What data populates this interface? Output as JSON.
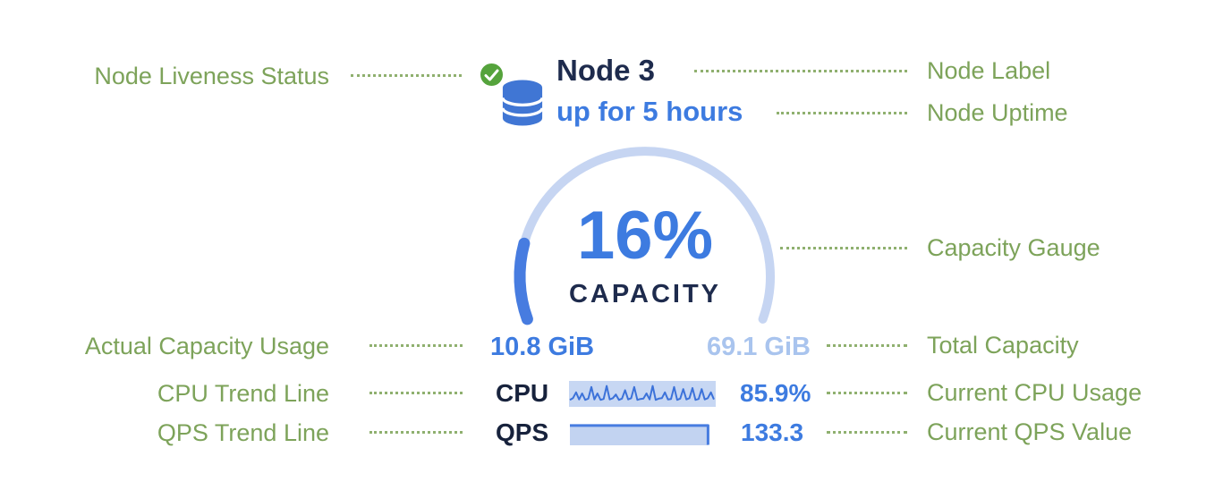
{
  "colors": {
    "annotation_green": "#7DA35A",
    "leader_dot_green": "#8FB06F",
    "navy": "#1E2B4D",
    "blue": "#3D7BE0",
    "light_blue_total": "#A9C4EE",
    "arc_track": "#C6D5F2",
    "arc_value": "#477CE0",
    "sparkline_bg": "#C7D7F3",
    "sparkline_line": "#3C72D9",
    "qps_fill": "#C2D3F1",
    "qps_line": "#477CE0",
    "db_icon_blue": "#4076D4",
    "liveness_green": "#55A33C"
  },
  "node": {
    "label": "Node 3",
    "uptime": "up for 5 hours",
    "capacity_percent": "16%",
    "capacity_caption": "CAPACITY",
    "used_capacity": "10.8 GiB",
    "total_capacity": "69.1 GiB",
    "cpu_label": "CPU",
    "cpu_value": "85.9%",
    "qps_label": "QPS",
    "qps_value": "133.3"
  },
  "annotations": {
    "left": [
      {
        "label": "Node Liveness Status"
      },
      {
        "label": "Actual Capacity Usage"
      },
      {
        "label": "CPU Trend Line"
      },
      {
        "label": "QPS Trend Line"
      }
    ],
    "right": [
      {
        "label": "Node Label"
      },
      {
        "label": "Node Uptime"
      },
      {
        "label": "Capacity Gauge"
      },
      {
        "label": "Total Capacity"
      },
      {
        "label": "Current CPU Usage"
      },
      {
        "label": "Current QPS Value"
      }
    ]
  },
  "chart_data": [
    {
      "type": "gauge",
      "title": "CAPACITY",
      "value_percent": 16,
      "used": "10.8 GiB",
      "total": "69.1 GiB",
      "arc_sweep_degrees": 220,
      "arc_start_degrees": 160
    },
    {
      "type": "line",
      "name": "CPU sparkline",
      "current_value": 85.9,
      "unit": "%",
      "y_normalized": [
        0.8,
        0.72,
        0.45,
        0.78,
        0.5,
        0.8,
        0.74,
        0.2,
        0.78,
        0.5,
        0.8,
        0.76,
        0.15,
        0.78,
        0.72,
        0.55,
        0.8,
        0.74,
        0.35,
        0.78,
        0.72,
        0.2,
        0.8,
        0.76,
        0.74,
        0.5,
        0.78,
        0.15,
        0.8,
        0.74,
        0.72,
        0.45,
        0.78,
        0.76,
        0.2,
        0.8,
        0.74,
        0.3,
        0.78,
        0.72,
        0.25,
        0.8,
        0.76,
        0.3,
        0.78,
        0.72,
        0.45,
        0.78
      ]
    },
    {
      "type": "area",
      "name": "QPS trend",
      "current_value": 133.3,
      "profile": [
        {
          "x": 0.0,
          "y": 0.17
        },
        {
          "x": 0.965,
          "y": 0.17
        },
        {
          "x": 0.965,
          "y": 1.0
        }
      ]
    }
  ]
}
